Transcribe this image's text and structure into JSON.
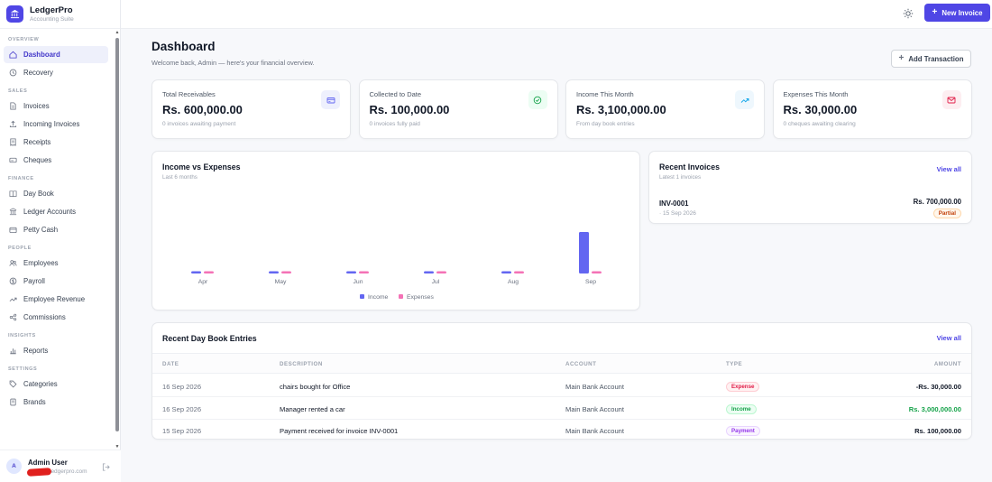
{
  "brand": {
    "name": "LedgerPro",
    "subtitle": "Accounting Suite"
  },
  "sidebar": {
    "sections": [
      {
        "title": "OVERVIEW",
        "items": [
          {
            "label": "Dashboard",
            "icon": "home-icon",
            "active": true
          },
          {
            "label": "Recovery",
            "icon": "clock-icon"
          }
        ]
      },
      {
        "title": "SALES",
        "items": [
          {
            "label": "Invoices",
            "icon": "file-icon"
          },
          {
            "label": "Incoming Invoices",
            "icon": "upload-icon"
          },
          {
            "label": "Receipts",
            "icon": "receipt-icon"
          },
          {
            "label": "Cheques",
            "icon": "cheque-icon"
          }
        ]
      },
      {
        "title": "FINANCE",
        "items": [
          {
            "label": "Day Book",
            "icon": "book-icon"
          },
          {
            "label": "Ledger Accounts",
            "icon": "ledger-icon"
          },
          {
            "label": "Petty Cash",
            "icon": "wallet-icon"
          }
        ]
      },
      {
        "title": "PEOPLE",
        "items": [
          {
            "label": "Employees",
            "icon": "users-icon"
          },
          {
            "label": "Payroll",
            "icon": "dollar-icon"
          },
          {
            "label": "Employee Revenue",
            "icon": "trend-icon"
          },
          {
            "label": "Commissions",
            "icon": "share-icon"
          }
        ]
      },
      {
        "title": "INSIGHTS",
        "items": [
          {
            "label": "Reports",
            "icon": "bar-chart-icon"
          }
        ]
      },
      {
        "title": "SETTINGS",
        "items": [
          {
            "label": "Categories",
            "icon": "tag-icon"
          },
          {
            "label": "Brands",
            "icon": "brand-icon"
          }
        ]
      }
    ]
  },
  "user": {
    "initial": "A",
    "name": "Admin User",
    "email": "ledgerpro.com"
  },
  "topbar": {
    "new_invoice_label": "New Invoice"
  },
  "header": {
    "title": "Dashboard",
    "subtitle": "Welcome back, Admin — here's your financial overview.",
    "add_transaction_label": "Add Transaction"
  },
  "stats": [
    {
      "label": "Total Receivables",
      "value": "Rs. 600,000.00",
      "note": "0 invoices awaiting payment",
      "icon": "card-icon",
      "icon_color": "#6366f1",
      "icon_bg": "#eef0fd"
    },
    {
      "label": "Collected to Date",
      "value": "Rs. 100,000.00",
      "note": "0 invoices fully paid",
      "icon": "check-circle-icon",
      "icon_color": "#16a34a",
      "icon_bg": "#ecfdf3"
    },
    {
      "label": "Income This Month",
      "value": "Rs. 3,100,000.00",
      "note": "From day book entries",
      "icon": "trend-up-icon",
      "icon_color": "#0ea5e9",
      "icon_bg": "#eef7fd"
    },
    {
      "label": "Expenses This Month",
      "value": "Rs. 30,000.00",
      "note": "0 cheques awaiting clearing",
      "icon": "mail-icon",
      "icon_color": "#e11d48",
      "icon_bg": "#fdeef1"
    }
  ],
  "chart_card": {
    "title": "Income vs Expenses",
    "subtitle": "Last 6 months"
  },
  "chart_data": {
    "type": "bar",
    "categories": [
      "Apr",
      "May",
      "Jun",
      "Jul",
      "Aug",
      "Sep"
    ],
    "series": [
      {
        "name": "Income",
        "color": "#6366f1",
        "values": [
          0,
          0,
          0,
          0,
          0,
          3100000
        ]
      },
      {
        "name": "Expenses",
        "color": "#f472b6",
        "values": [
          0,
          0,
          0,
          0,
          0,
          30000
        ]
      }
    ],
    "legend": "bottom",
    "grid": false
  },
  "recent_invoices": {
    "title": "Recent Invoices",
    "subtitle": "Latest 1 invoices",
    "view_all": "View all",
    "items": [
      {
        "id": "INV-0001",
        "date": "· 15 Sep 2026",
        "amount": "Rs. 700,000.00",
        "status": "Partial"
      }
    ]
  },
  "daybook": {
    "title": "Recent Day Book Entries",
    "view_all": "View all",
    "columns": [
      "DATE",
      "DESCRIPTION",
      "ACCOUNT",
      "TYPE",
      "AMOUNT"
    ],
    "rows": [
      {
        "date": "16 Sep 2026",
        "description": "chairs bought for Office",
        "account": "Main Bank Account",
        "type": "Expense",
        "amount": "-Rs. 30,000.00",
        "type_color": "#e11d48"
      },
      {
        "date": "16 Sep 2026",
        "description": "Manager rented a car",
        "account": "Main Bank Account",
        "type": "Income",
        "amount": "Rs. 3,000,000.00",
        "type_color": "#16a34a"
      },
      {
        "date": "15 Sep 2026",
        "description": "Payment received for invoice INV-0001",
        "account": "Main Bank Account",
        "type": "Payment",
        "amount": "Rs. 100,000.00",
        "type_color": "#9333ea"
      }
    ]
  }
}
